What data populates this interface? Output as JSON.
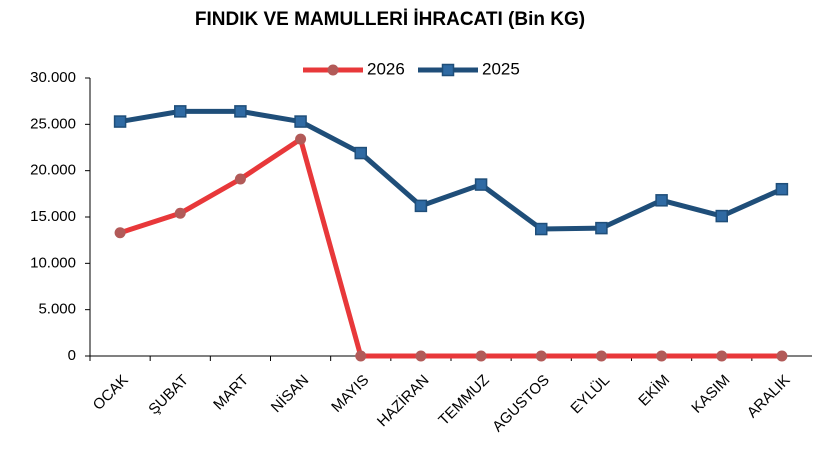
{
  "chart_data": {
    "type": "line",
    "title": "FINDIK VE MAMULLERİ İHRACATI  (Bin KG)",
    "categories": [
      "OCAK",
      "ŞUBAT",
      "MART",
      "NİSAN",
      "MAYIS",
      "HAZİRAN",
      "TEMMUZ",
      "AGUSTOS",
      "EYLÜL",
      "EKİM",
      "KASIM",
      "ARALIK"
    ],
    "series": [
      {
        "name": "2026",
        "color": "#e8383a",
        "marker": "circle",
        "marker_color": "#b25a58",
        "values": [
          13300,
          15400,
          19100,
          23400,
          0,
          0,
          0,
          0,
          0,
          0,
          0,
          0
        ]
      },
      {
        "name": "2025",
        "color": "#1f4e79",
        "marker": "square",
        "marker_color": "#2f6aa3",
        "values": [
          25300,
          26400,
          26400,
          25300,
          21900,
          16200,
          18500,
          13700,
          13800,
          16800,
          15100,
          18000
        ]
      }
    ],
    "ylim": [
      0,
      30000
    ],
    "yticks": [
      0,
      {
        "value": 5000,
        "label": "5.000"
      },
      {
        "value": 10000,
        "label": "10.000"
      },
      {
        "value": 15000,
        "label": "15.000"
      },
      {
        "value": 20000,
        "label": "20.000"
      },
      {
        "value": 25000,
        "label": "25.000"
      },
      {
        "value": 30000,
        "label": "30.000"
      }
    ],
    "legend": "top",
    "grid": false
  }
}
